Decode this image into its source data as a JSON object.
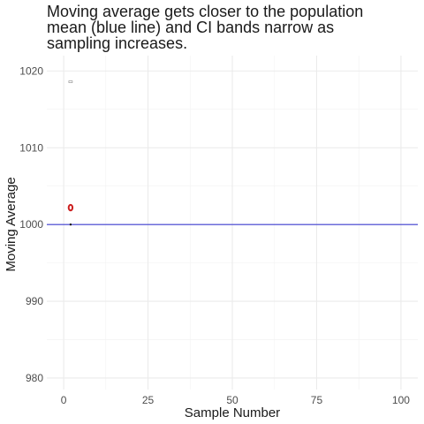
{
  "chart_data": {
    "type": "line",
    "title": "Moving average gets closer to the population\nmean (blue line) and CI bands narrow as\nsampling increases.",
    "xlabel": "Sample Number",
    "ylabel": "Moving Average",
    "xlim": [
      -5,
      105
    ],
    "ylim": [
      978.5,
      1022
    ],
    "x_ticks": [
      0,
      25,
      50,
      75,
      100
    ],
    "y_ticks": [
      980,
      990,
      1000,
      1010,
      1020
    ],
    "grid": true,
    "legend": "none",
    "reference_line": {
      "y": 1000,
      "color": "#3f3fd1"
    },
    "series": [
      {
        "x": [
          1
        ],
        "y": [
          1002.2
        ],
        "color": "#cc1f1f"
      }
    ],
    "ci_bands": [
      {
        "x": 1,
        "lower": 1000,
        "upper": 1018.6
      }
    ]
  }
}
